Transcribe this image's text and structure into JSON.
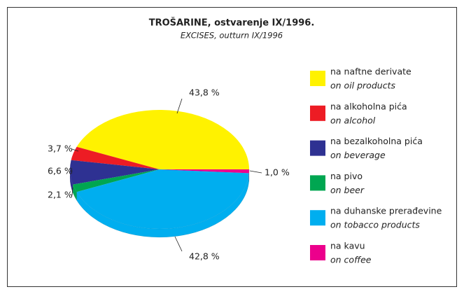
{
  "chart_data": {
    "type": "pie",
    "title": "TROŠARINE, ostvarenje IX/1996.",
    "subtitle": "EXCISES, outturn IX/1996",
    "categories": [
      "na naftne derivate",
      "na alkoholna pića",
      "na bezalkoholna pića",
      "na pivo",
      "na duhanske prerađevine",
      "na kavu"
    ],
    "categories_en": [
      "on oil products",
      "on alcohol",
      "on beverage",
      "on beer",
      "on tobacco products",
      "on coffee"
    ],
    "values": [
      43.8,
      3.7,
      6.6,
      2.1,
      42.8,
      1.0
    ],
    "value_labels": [
      "43,8 %",
      "3,7 %",
      "6,6 %",
      "2,1 %",
      "42,8 %",
      "1,0 %"
    ],
    "colors": [
      "#fff200",
      "#ed1c24",
      "#2e3192",
      "#00a651",
      "#00aeef",
      "#ec008c"
    ]
  }
}
